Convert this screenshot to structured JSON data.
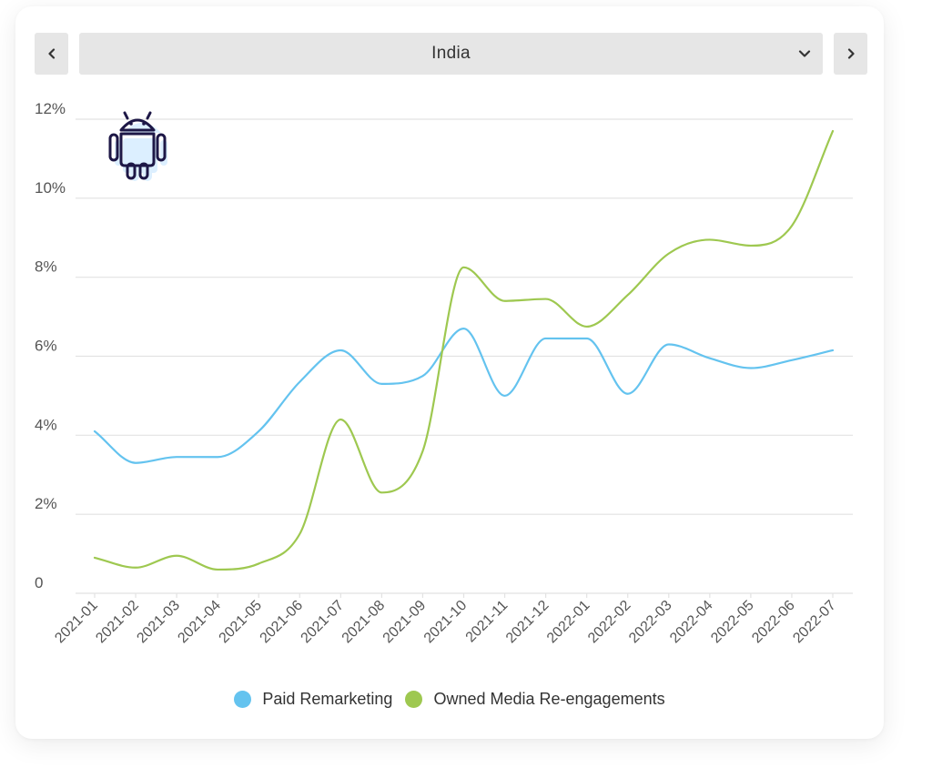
{
  "header": {
    "selected_country": "India",
    "prev_icon": "chevron-left-icon",
    "next_icon": "chevron-right-icon",
    "dropdown_icon": "chevron-down-icon"
  },
  "platform_icon": "android-icon",
  "colors": {
    "paid": "#64c3ef",
    "owned": "#9ec850",
    "grid": "#e2e2e2",
    "axis_text": "#555555",
    "android": "#1d1746",
    "android_fill": "#dcefff"
  },
  "chart_data": {
    "type": "line",
    "categories": [
      "2021-01",
      "2021-02",
      "2021-03",
      "2021-04",
      "2021-05",
      "2021-06",
      "2021-07",
      "2021-08",
      "2021-09",
      "2021-10",
      "2021-11",
      "2021-12",
      "2022-01",
      "2022-02",
      "2022-03",
      "2022-04",
      "2022-05",
      "2022-06",
      "2022-07"
    ],
    "series": [
      {
        "name": "Paid Remarketing",
        "values": [
          4.1,
          3.3,
          3.45,
          3.45,
          4.1,
          5.35,
          6.15,
          5.3,
          5.5,
          6.7,
          5.0,
          6.45,
          6.45,
          5.05,
          6.3,
          5.95,
          5.7,
          5.9,
          6.15
        ]
      },
      {
        "name": "Owned Media Re-engagements",
        "values": [
          0.9,
          0.65,
          0.95,
          0.6,
          0.75,
          1.5,
          4.4,
          2.55,
          3.6,
          8.25,
          7.4,
          7.45,
          6.75,
          7.55,
          8.6,
          8.95,
          8.8,
          9.3,
          11.7
        ]
      }
    ],
    "y_ticks": [
      0,
      2,
      4,
      6,
      8,
      10,
      12
    ],
    "y_tick_labels": [
      "0",
      "2%",
      "4%",
      "6%",
      "8%",
      "10%",
      "12%"
    ],
    "ylim": [
      0,
      12
    ],
    "grid": true,
    "legend_position": "bottom-center"
  }
}
